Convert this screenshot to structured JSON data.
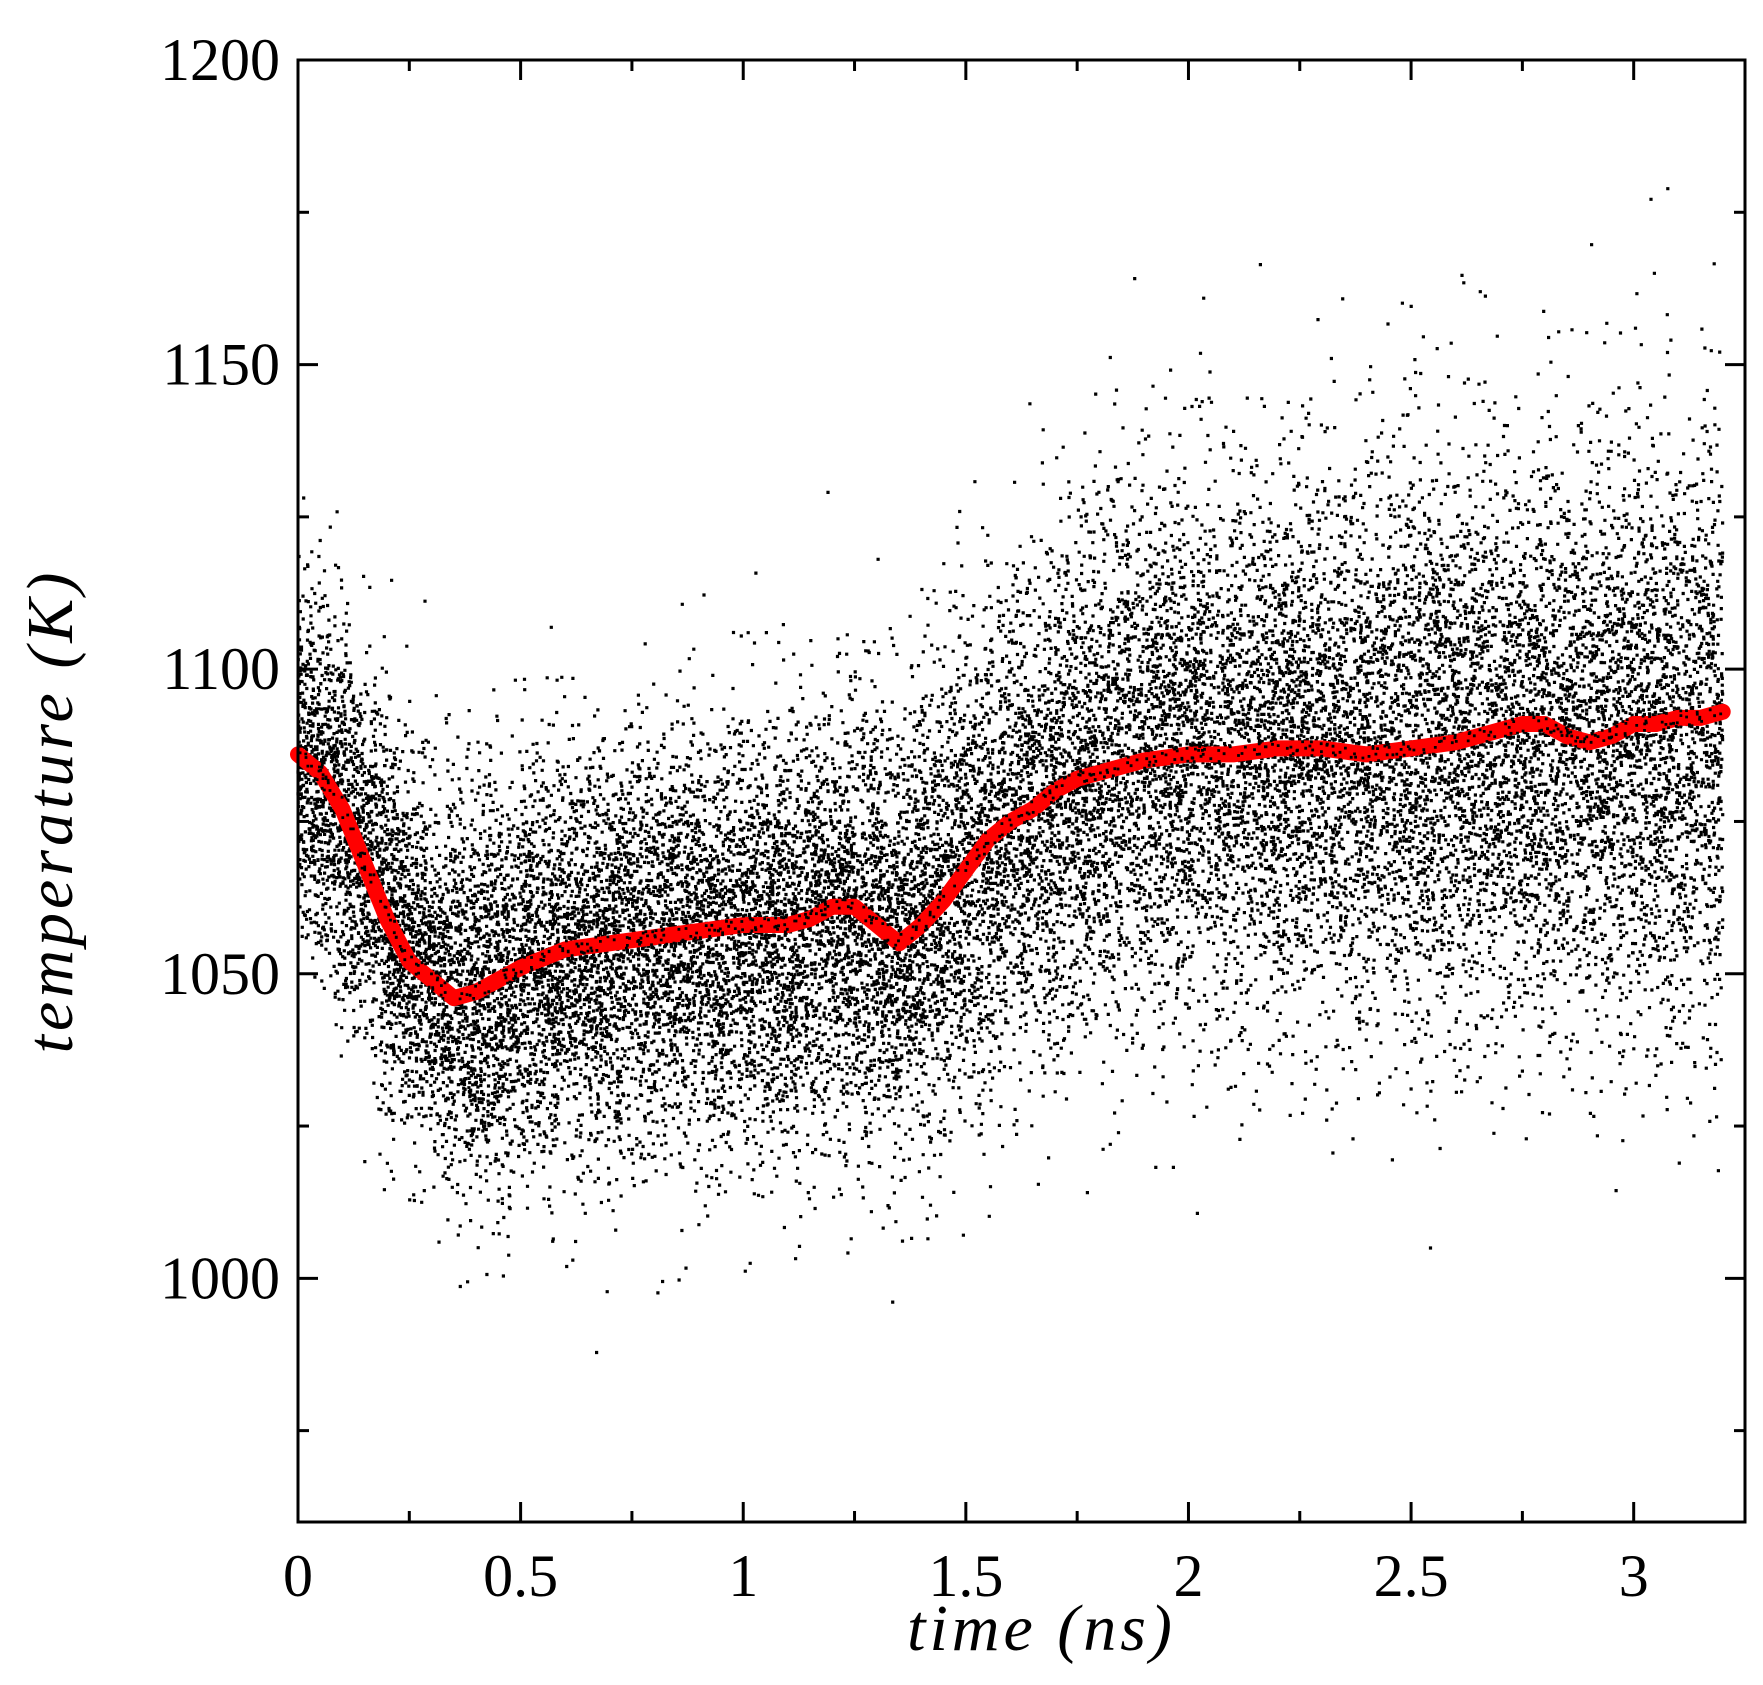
{
  "chart_data": {
    "type": "scatter",
    "title": "",
    "xlabel": "time (ns)",
    "ylabel": "temperature (K)",
    "xlim": [
      0,
      3.25
    ],
    "ylim": [
      960,
      1200
    ],
    "xticks": [
      0,
      0.5,
      1,
      1.5,
      2,
      2.5,
      3
    ],
    "xtick_labels": [
      "0",
      "0.5",
      "1",
      "1.5",
      "2",
      "2.5",
      "3"
    ],
    "yticks": [
      1000,
      1050,
      1100,
      1150,
      1200
    ],
    "ytick_labels": [
      "1000",
      "1050",
      "1100",
      "1150",
      "1200"
    ],
    "grid": false,
    "legend": "none",
    "series": [
      {
        "kind": "scatter",
        "color": "#000000",
        "x_range": [
          0,
          3.2
        ],
        "point_count": 24000,
        "mean_curve": {
          "x": [
            0,
            0.1,
            0.2,
            0.3,
            0.35,
            0.4,
            0.5,
            0.6,
            0.7,
            0.8,
            0.9,
            1.0,
            1.1,
            1.2,
            1.3,
            1.35,
            1.4,
            1.5,
            1.6,
            1.7,
            1.8,
            1.9,
            2.0,
            2.1,
            2.2,
            2.3,
            2.4,
            2.5,
            2.6,
            2.7,
            2.8,
            2.9,
            3.0,
            3.1,
            3.2
          ],
          "y": [
            1087,
            1076,
            1060,
            1050,
            1046,
            1046,
            1050,
            1053,
            1054,
            1055,
            1056,
            1056,
            1057,
            1060,
            1057,
            1055,
            1060,
            1068,
            1075,
            1080,
            1083,
            1086,
            1087,
            1087,
            1087,
            1087,
            1087,
            1087,
            1088,
            1088,
            1088,
            1088,
            1088,
            1089,
            1090
          ]
        },
        "spread_sd": {
          "x": [
            0,
            0.3,
            0.5,
            1.0,
            1.5,
            1.8,
            2.5,
            3.2
          ],
          "y": [
            14,
            16,
            17,
            17,
            19,
            21,
            23,
            24
          ]
        }
      },
      {
        "kind": "running-average",
        "color": "#ff0000",
        "x": [
          0,
          0.05,
          0.1,
          0.15,
          0.2,
          0.25,
          0.3,
          0.35,
          0.4,
          0.45,
          0.5,
          0.6,
          0.7,
          0.8,
          0.9,
          1.0,
          1.1,
          1.15,
          1.2,
          1.25,
          1.3,
          1.35,
          1.4,
          1.45,
          1.5,
          1.55,
          1.6,
          1.65,
          1.7,
          1.75,
          1.8,
          1.9,
          2.0,
          2.1,
          2.2,
          2.3,
          2.4,
          2.5,
          2.6,
          2.7,
          2.75,
          2.8,
          2.85,
          2.9,
          2.95,
          3.0,
          3.05,
          3.1,
          3.15,
          3.2
        ],
        "y": [
          1086,
          1083,
          1077,
          1068,
          1059,
          1052,
          1049,
          1046,
          1047,
          1049,
          1051,
          1054,
          1055,
          1056,
          1057,
          1058,
          1058,
          1059,
          1061,
          1061,
          1058,
          1055,
          1058,
          1062,
          1067,
          1072,
          1075,
          1077,
          1080,
          1082,
          1083,
          1085,
          1086,
          1086,
          1087,
          1087,
          1086,
          1087,
          1088,
          1090,
          1091,
          1091,
          1089,
          1088,
          1089,
          1091,
          1091,
          1092,
          1092,
          1093
        ]
      }
    ]
  }
}
